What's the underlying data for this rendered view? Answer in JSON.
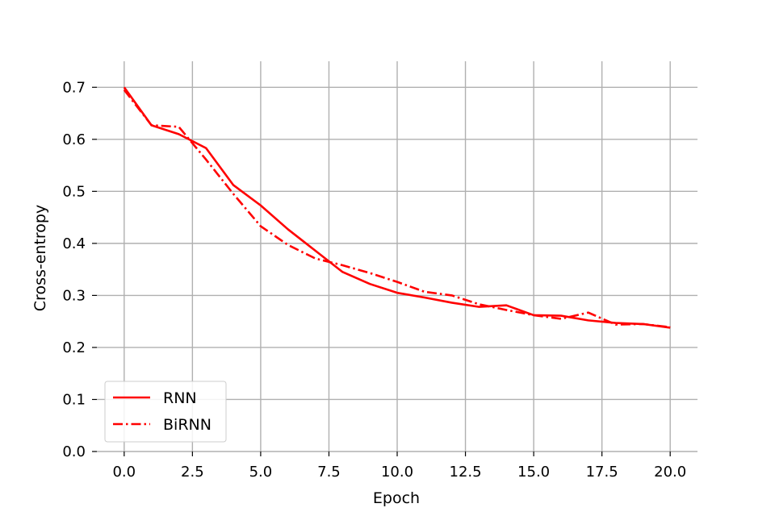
{
  "chart_data": {
    "type": "line",
    "title": "",
    "xlabel": "Epoch",
    "ylabel": "Cross-entropy",
    "xlim": [
      -1,
      21
    ],
    "ylim": [
      0,
      0.75
    ],
    "x_ticks": [
      0.0,
      2.5,
      5.0,
      7.5,
      10.0,
      12.5,
      15.0,
      17.5,
      20.0
    ],
    "x_tick_labels": [
      "0.0",
      "2.5",
      "5.0",
      "7.5",
      "10.0",
      "12.5",
      "15.0",
      "17.5",
      "20.0"
    ],
    "y_ticks": [
      0.0,
      0.1,
      0.2,
      0.3,
      0.4,
      0.5,
      0.6,
      0.7
    ],
    "y_tick_labels": [
      "0.0",
      "0.1",
      "0.2",
      "0.3",
      "0.4",
      "0.5",
      "0.6",
      "0.7"
    ],
    "grid": true,
    "legend_position": "lower-left",
    "x": [
      0,
      1,
      2,
      3,
      4,
      5,
      6,
      7,
      8,
      9,
      10,
      11,
      12,
      13,
      14,
      15,
      16,
      17,
      18,
      19,
      20
    ],
    "series": [
      {
        "name": "RNN",
        "color": "#ff0000",
        "line_style": "solid",
        "values": [
          0.7,
          0.627,
          0.61,
          0.583,
          0.512,
          0.473,
          0.427,
          0.386,
          0.345,
          0.322,
          0.305,
          0.296,
          0.286,
          0.278,
          0.281,
          0.262,
          0.261,
          0.252,
          0.247,
          0.245,
          0.238
        ]
      },
      {
        "name": "BiRNN",
        "color": "#ff0000",
        "line_style": "dashdot",
        "values": [
          0.695,
          0.627,
          0.624,
          0.561,
          0.495,
          0.433,
          0.397,
          0.371,
          0.358,
          0.343,
          0.326,
          0.307,
          0.3,
          0.283,
          0.272,
          0.262,
          0.255,
          0.267,
          0.244,
          0.245,
          0.239
        ]
      }
    ]
  }
}
